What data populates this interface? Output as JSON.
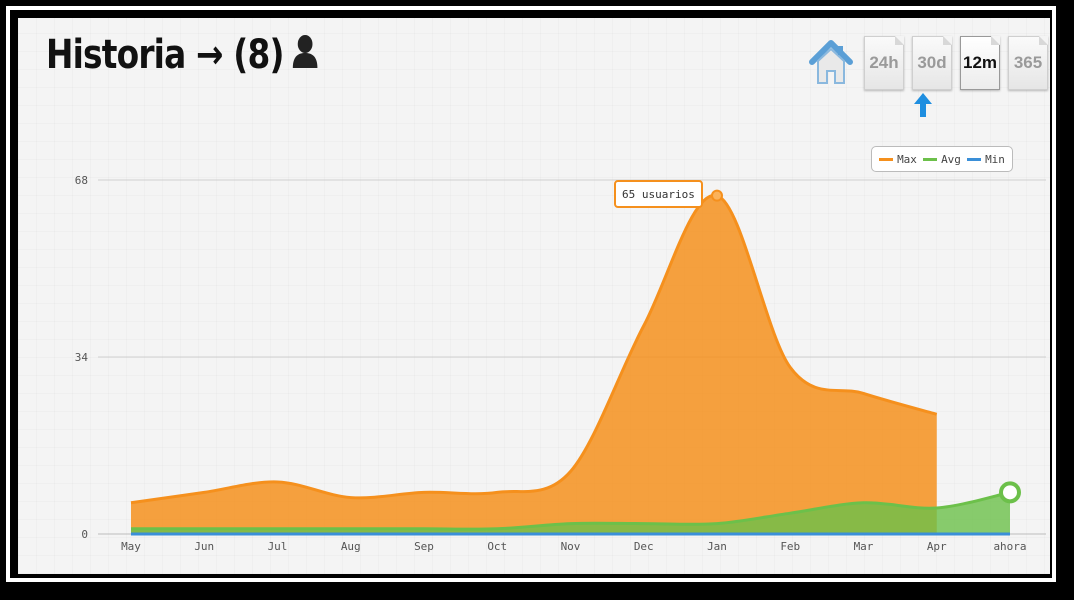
{
  "header": {
    "title": "Historia → (8)",
    "user_icon": "user-icon"
  },
  "toolbar": {
    "home_icon": "home-icon",
    "ranges": [
      {
        "label": "24h",
        "active": false
      },
      {
        "label": "30d",
        "active": false
      },
      {
        "label": "12m",
        "active": true
      },
      {
        "label": "365",
        "active": false
      }
    ],
    "indicator_icon": "arrow-up-icon"
  },
  "tooltip": {
    "text": "65 usuarios"
  },
  "colors": {
    "max": "#f5901d",
    "avg": "#6cc04a",
    "min": "#3a8fd8"
  },
  "chart_data": {
    "type": "area",
    "categories": [
      "May",
      "Jun",
      "Jul",
      "Aug",
      "Sep",
      "Oct",
      "Nov",
      "Dec",
      "Jan",
      "Feb",
      "Mar",
      "Apr",
      "ahora"
    ],
    "yticks": [
      0,
      34,
      68
    ],
    "ylim": [
      0,
      68
    ],
    "grid": true,
    "legend_position": "top-right",
    "series": [
      {
        "name": "Max",
        "values": [
          6,
          8,
          10,
          7,
          8,
          8,
          12,
          40,
          65,
          32,
          27,
          23,
          null
        ]
      },
      {
        "name": "Avg",
        "values": [
          1,
          1,
          1,
          1,
          1,
          1,
          2,
          2,
          2,
          4,
          6,
          5,
          8
        ]
      },
      {
        "name": "Min",
        "values": [
          0,
          0,
          0,
          0,
          0,
          0,
          0,
          0,
          0,
          0,
          0,
          0,
          0
        ]
      }
    ]
  }
}
